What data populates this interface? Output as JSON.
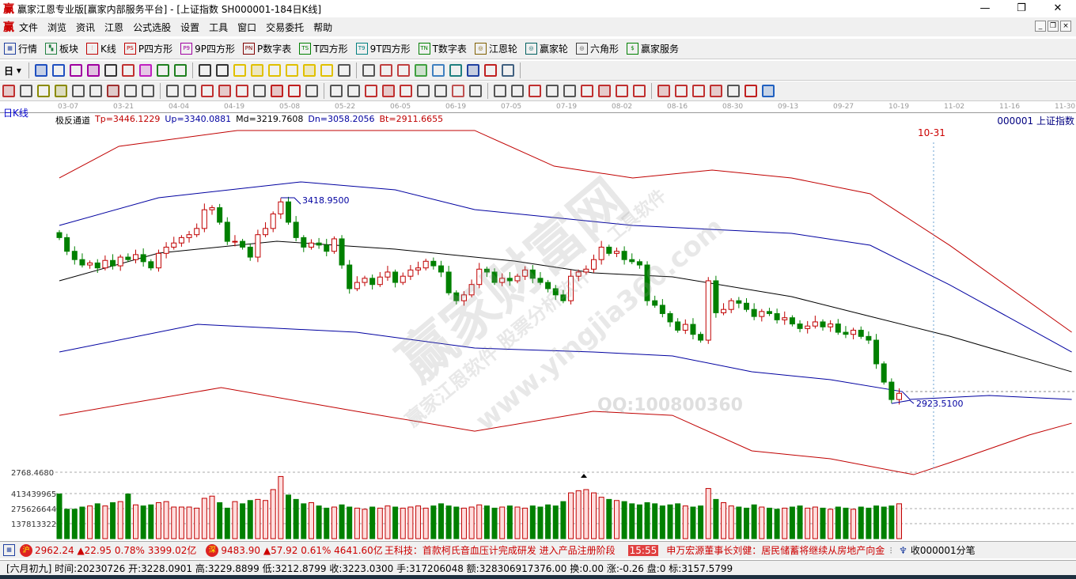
{
  "window": {
    "title": "赢家江恩专业版[赢家内部服务平台] - [上证指数  SH000001-184日K线]",
    "logo": "赢",
    "controls": [
      "—",
      "❐",
      "✕"
    ],
    "mdi_controls": [
      "_",
      "❐",
      "×"
    ]
  },
  "menu": [
    "文件",
    "浏览",
    "资讯",
    "江恩",
    "公式选股",
    "设置",
    "工具",
    "窗口",
    "交易委托",
    "帮助"
  ],
  "toolbar1": [
    {
      "icon": "grid-icon",
      "code": "▦",
      "label": "行情",
      "color": "#2040a0"
    },
    {
      "icon": "blocks-icon",
      "code": "▚",
      "label": "板块",
      "color": "#208040"
    },
    {
      "icon": "kline-icon",
      "code": "⫶",
      "label": "K线",
      "color": "#c00000"
    },
    {
      "icon": "ps-icon",
      "code": "PS",
      "label": "P四方形",
      "color": "#c00000"
    },
    {
      "icon": "p9-icon",
      "code": "P9",
      "label": "9P四方形",
      "color": "#a000a0"
    },
    {
      "icon": "pn-icon",
      "code": "PN",
      "label": "P数字表",
      "color": "#800000"
    },
    {
      "icon": "ts-icon",
      "code": "TS",
      "label": "T四方形",
      "color": "#008000"
    },
    {
      "icon": "t9-icon",
      "code": "T9",
      "label": "9T四方形",
      "color": "#008080"
    },
    {
      "icon": "tn-icon",
      "code": "TN",
      "label": "T数字表",
      "color": "#008000"
    },
    {
      "icon": "wheel-icon",
      "code": "◎",
      "label": "江恩轮",
      "color": "#806000"
    },
    {
      "icon": "winner-wheel-icon",
      "code": "◎",
      "label": "赢家轮",
      "color": "#006060"
    },
    {
      "icon": "hexagon-icon",
      "code": "◎",
      "label": "六角形",
      "color": "#404040"
    },
    {
      "icon": "dollar-icon",
      "code": "$",
      "label": "赢家服务",
      "color": "#008000"
    }
  ],
  "toolbar2": {
    "period": "日",
    "icons": [
      "#2050c0",
      "#2050c0",
      "#a000a0",
      "#a000a0",
      "#333",
      "#c03030",
      "#c020c0",
      "#208020",
      "#208020",
      "#333",
      "#333",
      "#e0c000",
      "#e0c000",
      "#e0c000",
      "#e0c000",
      "#e0c000",
      "#e0c000",
      "#555",
      "#555",
      "#c04040",
      "#c04040",
      "#40a040",
      "#4080c0",
      "#208080",
      "#2040a0",
      "#c02020",
      "#406080"
    ]
  },
  "toolbar3": {
    "icons": [
      "#c03030",
      "#555",
      "#8a8a00",
      "#8a8a00",
      "#555",
      "#555",
      "#a03030",
      "#555",
      "#555",
      "#555",
      "#555",
      "#c03030",
      "#c03030",
      "#c03030",
      "#555",
      "#c02020",
      "#c02020",
      "#555",
      "#555",
      "#555",
      "#c03030",
      "#c03030",
      "#c03030",
      "#555",
      "#555",
      "#c05050",
      "#555",
      "#555",
      "#555",
      "#c03030",
      "#555",
      "#555",
      "#c03030",
      "#c03030",
      "#c03030",
      "#c03030",
      "#c03030",
      "#c03030",
      "#c03030",
      "#c03030",
      "#555",
      "#c02020",
      "#2060c0"
    ]
  },
  "chart_header": {
    "period_label": "日K线",
    "indicator": "极反通道",
    "tp": "Tp=3446.1229",
    "up": "Up=3340.0881",
    "md": "Md=3219.7608",
    "dn": "Dn=3058.2056",
    "bt": "Bt=2911.6655",
    "security": "000001  上证指数",
    "marker_date": "10-31",
    "high_label": "3418.9500",
    "low_label": "2923.5100",
    "vol_top_label": "2768.4680"
  },
  "colors": {
    "tp": "#c00000",
    "up": "#0000a0",
    "md": "#000000",
    "dn": "#0000a0",
    "bt": "#c00000",
    "up_candle": "#c00000",
    "down_candle": "#008000"
  },
  "chart_data": {
    "type": "candlestick",
    "date_ticks": [
      "03-07",
      "03-21",
      "04-04",
      "04-19",
      "05-08",
      "05-22",
      "06-05",
      "06-19",
      "07-05",
      "07-19",
      "08-02",
      "08-16",
      "08-30",
      "09-13",
      "09-27",
      "10-19",
      "11-02",
      "11-16",
      "11-30"
    ],
    "closes": [
      3323,
      3290,
      3270,
      3257,
      3262,
      3250,
      3268,
      3255,
      3276,
      3270,
      3282,
      3265,
      3250,
      3285,
      3300,
      3310,
      3323,
      3330,
      3345,
      3390,
      3395,
      3360,
      3314,
      3314,
      3300,
      3276,
      3330,
      3345,
      3380,
      3409,
      3360,
      3323,
      3300,
      3310,
      3305,
      3290,
      3320,
      3257,
      3200,
      3215,
      3225,
      3210,
      3228,
      3240,
      3215,
      3230,
      3245,
      3250,
      3266,
      3255,
      3240,
      3190,
      3171,
      3185,
      3210,
      3247,
      3240,
      3215,
      3225,
      3219,
      3230,
      3245,
      3225,
      3215,
      3200,
      3185,
      3171,
      3230,
      3240,
      3247,
      3270,
      3300,
      3285,
      3290,
      3270,
      3265,
      3257,
      3171,
      3160,
      3140,
      3120,
      3100,
      3114,
      3090,
      3076,
      3219,
      3142,
      3150,
      3171,
      3165,
      3150,
      3133,
      3145,
      3140,
      3125,
      3130,
      3115,
      3104,
      3110,
      3120,
      3108,
      3115,
      3095,
      3090,
      3100,
      3085,
      3076,
      3019,
      2975,
      2933,
      2948
    ],
    "volumes": [
      410000000.0,
      270000000.0,
      270000000.0,
      290000000.0,
      300000000.0,
      320000000.0,
      300000000.0,
      330000000.0,
      340000000.0,
      410000000.0,
      310000000.0,
      300000000.0,
      310000000.0,
      330000000.0,
      340000000.0,
      290000000.0,
      290000000.0,
      290000000.0,
      280000000.0,
      370000000.0,
      390000000.0,
      330000000.0,
      280000000.0,
      340000000.0,
      320000000.0,
      350000000.0,
      360000000.0,
      350000000.0,
      450000000.0,
      570000000.0,
      400000000.0,
      360000000.0,
      320000000.0,
      330000000.0,
      300000000.0,
      280000000.0,
      290000000.0,
      310000000.0,
      290000000.0,
      280000000.0,
      270000000.0,
      290000000.0,
      280000000.0,
      300000000.0,
      290000000.0,
      280000000.0,
      290000000.0,
      300000000.0,
      280000000.0,
      300000000.0,
      320000000.0,
      300000000.0,
      290000000.0,
      280000000.0,
      290000000.0,
      310000000.0,
      300000000.0,
      280000000.0,
      290000000.0,
      300000000.0,
      290000000.0,
      280000000.0,
      300000000.0,
      290000000.0,
      310000000.0,
      300000000.0,
      340000000.0,
      420000000.0,
      440000000.0,
      450000000.0,
      420000000.0,
      380000000.0,
      360000000.0,
      350000000.0,
      340000000.0,
      320000000.0,
      310000000.0,
      330000000.0,
      320000000.0,
      300000000.0,
      310000000.0,
      320000000.0,
      300000000.0,
      290000000.0,
      300000000.0,
      460000000.0,
      360000000.0,
      330000000.0,
      300000000.0,
      290000000.0,
      280000000.0,
      310000000.0,
      290000000.0,
      280000000.0,
      270000000.0,
      280000000.0,
      290000000.0,
      300000000.0,
      280000000.0,
      290000000.0,
      280000000.0,
      270000000.0,
      290000000.0,
      280000000.0,
      270000000.0,
      290000000.0,
      280000000.0,
      300000000.0,
      290000000.0,
      300000000.0,
      320000000.0
    ],
    "volume_ticks": [
      "413439965",
      "275626644",
      "137813322"
    ],
    "bands": {
      "tp": [
        [
          0,
          3466.6
        ],
        [
          7.8,
          3542.8
        ],
        [
          23.3,
          3580.9
        ],
        [
          38.9,
          3580.9
        ],
        [
          54.4,
          3580.9
        ],
        [
          64.8,
          3495.1
        ],
        [
          75.1,
          3466.6
        ],
        [
          85.5,
          3485.6
        ],
        [
          95.9,
          3466.6
        ],
        [
          106.2,
          3428.5
        ],
        [
          116.6,
          3304.6
        ],
        [
          132.6,
          3095.1
        ]
      ],
      "up": [
        [
          0,
          3352.3
        ],
        [
          13,
          3418.95
        ],
        [
          31.6,
          3457.1
        ],
        [
          44,
          3437.9
        ],
        [
          54.4,
          3390.4
        ],
        [
          69.9,
          3361.8
        ],
        [
          75.1,
          3352.3
        ],
        [
          95.9,
          3333.2
        ],
        [
          106.2,
          3304.6
        ],
        [
          116.6,
          3209.4
        ],
        [
          132.6,
          3047.5
        ]
      ],
      "md": [
        [
          0,
          3218.9
        ],
        [
          13,
          3285.6
        ],
        [
          28.5,
          3314.2
        ],
        [
          44,
          3295.1
        ],
        [
          59.6,
          3266.5
        ],
        [
          69.9,
          3238.0
        ],
        [
          80.3,
          3228.5
        ],
        [
          95.9,
          3180.8
        ],
        [
          106.2,
          3133.2
        ],
        [
          116.6,
          3085.6
        ],
        [
          132.6,
          2999.8
        ]
      ],
      "dn": [
        [
          0,
          3047.5
        ],
        [
          18.1,
          3114.2
        ],
        [
          38.9,
          3095.1
        ],
        [
          54.4,
          3057.0
        ],
        [
          69.9,
          3047.5
        ],
        [
          80.3,
          3038.0
        ],
        [
          90.7,
          2999.9
        ],
        [
          101,
          2980.8
        ],
        [
          110.4,
          2952.2
        ],
        [
          111.4,
          2933.2
        ],
        [
          121.8,
          2942.7
        ],
        [
          132.6,
          2933.2
        ]
      ],
      "bt": [
        [
          0,
          2895.0
        ],
        [
          21.2,
          2961.7
        ],
        [
          38.9,
          2904.6
        ],
        [
          54.4,
          2856.9
        ],
        [
          69.9,
          2904.6
        ],
        [
          80.3,
          2895.0
        ],
        [
          90.7,
          2809.4
        ],
        [
          101,
          2790.3
        ],
        [
          111.9,
          2752.2
        ],
        [
          116.6,
          2780.8
        ],
        [
          127,
          2847.5
        ],
        [
          132.6,
          2876.0
        ]
      ]
    }
  },
  "watermark": {
    "main": "赢家财富网",
    "url": "www.yingjia360.com",
    "qq": "QQ:100800360",
    "sub": "赢家江恩软件 股票分析软件",
    "sub2": "工具软件"
  },
  "ticker": {
    "sh_badge": "沪",
    "sh": "2962.24 ▲22.95 0.78% 3399.02亿",
    "sz_badge": "深",
    "sz": "9483.90 ▲57.92 0.61% 4641.60亿",
    "news1": "王科技：首款柯氏音血压计完成研发 进入产品注册阶段",
    "time": "15:55",
    "news2": "申万宏源董事长刘健：居民储蓄将继续从房地产向金",
    "feed": "收000001分笔"
  },
  "status": "[六月初九] 时间:20230726 开:3228.0901 高:3229.8899 低:3212.8799 收:3223.0300 手:317206048 额:328306917376.00 换:0.00 涨:-0.26 盘:0 标:3157.5799"
}
